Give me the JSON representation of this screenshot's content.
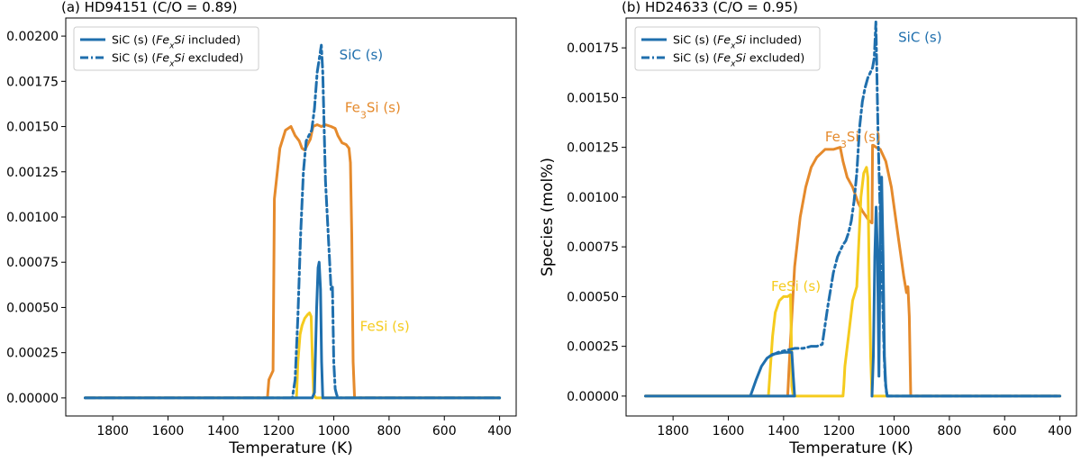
{
  "chart_data": [
    {
      "type": "line",
      "title": "(a) HD94151 (C/O = 0.89)",
      "xlabel": "Temperature (K)",
      "ylabel": "",
      "xlim": [
        1970,
        340
      ],
      "ylim": [
        -0.0001,
        0.0021
      ],
      "xticks": [
        1800,
        1600,
        1400,
        1200,
        1000,
        800,
        600,
        400
      ],
      "xtick_labels": [
        "1800",
        "1600",
        "1400",
        "1200",
        "1000",
        "800",
        "600",
        "400"
      ],
      "yticks": [
        0,
        0.00025,
        0.0005,
        0.00075,
        0.001,
        0.00125,
        0.0015,
        0.00175,
        0.002
      ],
      "ytick_labels": [
        "0.00000",
        "0.00025",
        "0.00050",
        "0.00075",
        "0.00100",
        "0.00125",
        "0.00150",
        "0.00175",
        "0.00200"
      ],
      "grid": false,
      "legend_position": "top-left",
      "legend": [
        {
          "text_before": "SiC (s) (",
          "italic": "FexSi",
          "text_after": " included)",
          "series": "SiC (s) FexSi included",
          "dash": "solid"
        },
        {
          "text_before": "SiC (s) (",
          "italic": "FexSi",
          "text_after": " excluded)",
          "series": "SiC (s) FexSi excluded",
          "dash": "dashdot"
        }
      ],
      "annotations": [
        {
          "label": "SiC (s)",
          "x": 980,
          "y": 0.00187,
          "color": "#1f6fad"
        },
        {
          "label": "Fe3Si (s)",
          "x": 960,
          "y": 0.00158,
          "color": "#e58a2c"
        },
        {
          "label": "FeSi (s)",
          "x": 905,
          "y": 0.00037,
          "color": "#f5cb1e"
        }
      ],
      "series": [
        {
          "name": "Fe3Si (s)",
          "color": "#e58a2c",
          "dash": "solid",
          "x": [
            1900,
            1240,
            1235,
            1220,
            1215,
            1195,
            1175,
            1155,
            1140,
            1125,
            1115,
            1105,
            1095,
            1085,
            1075,
            1060,
            1045,
            1030,
            1010,
            995,
            985,
            970,
            955,
            945,
            940,
            935,
            930,
            925,
            400
          ],
          "y": [
            0,
            0,
            0.0001,
            0.00015,
            0.0011,
            0.00138,
            0.00148,
            0.0015,
            0.00145,
            0.00142,
            0.00138,
            0.00137,
            0.0014,
            0.00143,
            0.0015,
            0.00151,
            0.0015,
            0.00151,
            0.0015,
            0.00149,
            0.00145,
            0.00141,
            0.0014,
            0.00138,
            0.0013,
            0.0009,
            0.0002,
            0,
            0
          ]
        },
        {
          "name": "FeSi (s)",
          "color": "#f5cb1e",
          "dash": "solid",
          "x": [
            1900,
            1135,
            1130,
            1122,
            1115,
            1105,
            1095,
            1088,
            1082,
            1077,
            1073,
            1065,
            400
          ],
          "y": [
            0,
            0,
            0.0002,
            0.00035,
            0.0004,
            0.00044,
            0.00046,
            0.00047,
            0.00045,
            0.0002,
            2e-05,
            0,
            0
          ]
        },
        {
          "name": "SiC (s) FexSi included",
          "color": "#1f6fad",
          "dash": "solid",
          "x": [
            1900,
            1078,
            1070,
            1062,
            1057,
            1053,
            1048,
            1044,
            1040,
            1030,
            400
          ],
          "y": [
            0,
            0,
            3e-05,
            0.0005,
            0.00072,
            0.00075,
            0.0006,
            0.0002,
            0,
            0,
            0
          ]
        },
        {
          "name": "SiC (s) FexSi excluded",
          "color": "#1f6fad",
          "dash": "dashdot",
          "x": [
            1900,
            1150,
            1140,
            1130,
            1120,
            1110,
            1100,
            1090,
            1080,
            1070,
            1060,
            1050,
            1045,
            1040,
            1035,
            1030,
            1020,
            1010,
            1005,
            1000,
            995,
            990,
            985,
            400
          ],
          "y": [
            0,
            0,
            0.0001,
            0.00045,
            0.0009,
            0.00125,
            0.00142,
            0.00145,
            0.00148,
            0.0016,
            0.0018,
            0.0019,
            0.00195,
            0.0018,
            0.0015,
            0.0012,
            0.0009,
            0.0006,
            0.00062,
            0.0002,
            5e-05,
            2e-05,
            0,
            0
          ]
        }
      ]
    },
    {
      "type": "line",
      "title": "(b) HD24633 (C/O = 0.95)",
      "xlabel": "Temperature (K)",
      "ylabel": "Species (mol%)",
      "xlim": [
        1970,
        340
      ],
      "ylim": [
        -0.0001,
        0.0019
      ],
      "xticks": [
        1800,
        1600,
        1400,
        1200,
        1000,
        800,
        600,
        400
      ],
      "xtick_labels": [
        "1800",
        "1600",
        "1400",
        "1200",
        "1000",
        "800",
        "600",
        "400"
      ],
      "yticks": [
        0,
        0.00025,
        0.0005,
        0.00075,
        0.001,
        0.00125,
        0.0015,
        0.00175
      ],
      "ytick_labels": [
        "0.00000",
        "0.00025",
        "0.00050",
        "0.00075",
        "0.00100",
        "0.00125",
        "0.00150",
        "0.00175"
      ],
      "grid": false,
      "legend_position": "top-left",
      "legend": [
        {
          "text_before": "SiC (s) (",
          "italic": "FexSi",
          "text_after": " included)",
          "series": "SiC (s) FexSi included",
          "dash": "solid"
        },
        {
          "text_before": "SiC (s) (",
          "italic": "FexSi",
          "text_after": " excluded)",
          "series": "SiC (s) FexSi excluded",
          "dash": "dashdot"
        }
      ],
      "annotations": [
        {
          "label": "SiC (s)",
          "x": 985,
          "y": 0.00178,
          "color": "#1f6fad"
        },
        {
          "label": "Fe3Si (s)",
          "x": 1250,
          "y": 0.00128,
          "color": "#e58a2c"
        },
        {
          "label": "FeSi (s)",
          "x": 1445,
          "y": 0.00053,
          "color": "#f5cb1e"
        }
      ],
      "series": [
        {
          "name": "Fe3Si (s)",
          "color": "#e58a2c",
          "dash": "solid",
          "x": [
            1900,
            1385,
            1380,
            1370,
            1360,
            1340,
            1320,
            1300,
            1280,
            1250,
            1220,
            1195,
            1185,
            1170,
            1150,
            1130,
            1115,
            1100,
            1090,
            1080,
            1078,
            1075,
            1065,
            1050,
            1030,
            1010,
            985,
            965,
            955,
            950,
            945,
            940,
            400
          ],
          "y": [
            0,
            0,
            0.00015,
            0.0004,
            0.00065,
            0.0009,
            0.00105,
            0.00115,
            0.0012,
            0.00124,
            0.00124,
            0.00125,
            0.00118,
            0.0011,
            0.00105,
            0.00097,
            0.00093,
            0.0009,
            0.00088,
            0.00087,
            0.00126,
            0.00126,
            0.00125,
            0.00124,
            0.00118,
            0.00105,
            0.0008,
            0.0006,
            0.00052,
            0.00055,
            0.0004,
            0,
            0
          ]
        },
        {
          "name": "FeSi (s)",
          "color": "#f5cb1e",
          "dash": "solid",
          "x": [
            1900,
            1455,
            1450,
            1440,
            1430,
            1415,
            1400,
            1385,
            1375,
            1372,
            1370,
            1365,
            1185,
            1182,
            1178,
            1165,
            1150,
            1135,
            1120,
            1110,
            1100,
            1095,
            1090,
            1085,
            1080,
            400
          ],
          "y": [
            0,
            0,
            0.0001,
            0.0003,
            0.00042,
            0.00048,
            0.0005,
            0.0005,
            0.00051,
            0.0003,
            5e-05,
            0,
            0,
            5e-05,
            0.00015,
            0.0003,
            0.00048,
            0.00055,
            0.001,
            0.00112,
            0.00115,
            0.0011,
            0.0006,
            0.0002,
            0,
            0
          ]
        },
        {
          "name": "SiC (s) FexSi included",
          "color": "#1f6fad",
          "dash": "solid",
          "x": [
            1900,
            1520,
            1500,
            1480,
            1460,
            1450,
            1440,
            1400,
            1370,
            1365,
            1360,
            1370,
            1400,
            1445,
            1450,
            1455,
            1600,
            1900
          ],
          "y": [
            0,
            0,
            8e-05,
            0.00015,
            0.00019,
            0.0002,
            0.00021,
            0.00022,
            0.00022,
            0.0001,
            0,
            0,
            0,
            0,
            0,
            0,
            0,
            0
          ],
          "overlay": {
            "x": [
              1080,
              1075,
              1070,
              1065,
              1060,
              1055,
              1050,
              1045,
              1040,
              1035,
              1030,
              1025,
              400
            ],
            "y": [
              0,
              0.0002,
              0.0007,
              0.00095,
              0.0007,
              0.0001,
              0.0009,
              0.0011,
              0.0007,
              0.0002,
              5e-05,
              0,
              0
            ]
          }
        },
        {
          "name": "SiC (s) FexSi excluded",
          "color": "#1f6fad",
          "dash": "dashdot",
          "x": [
            1450,
            1420,
            1390,
            1360,
            1330,
            1300,
            1280,
            1260,
            1240,
            1220,
            1205,
            1195,
            1185,
            1175,
            1165,
            1155,
            1145,
            1135,
            1125,
            1115,
            1105,
            1095,
            1085,
            1078,
            1072,
            1066,
            1062,
            1058,
            1052,
            1046,
            1040,
            1036,
            1032,
            1028,
            1025,
            400
          ],
          "y": [
            0.0002,
            0.00022,
            0.00023,
            0.00024,
            0.00024,
            0.00025,
            0.00025,
            0.00026,
            0.00045,
            0.00062,
            0.0007,
            0.00073,
            0.00076,
            0.00078,
            0.00082,
            0.00088,
            0.00098,
            0.00112,
            0.00135,
            0.00148,
            0.00155,
            0.0016,
            0.00163,
            0.00165,
            0.0017,
            0.00188,
            0.0016,
            0.0013,
            0.001,
            0.0007,
            0.0004,
            0.0002,
            8e-05,
            2e-05,
            0,
            0
          ]
        }
      ]
    }
  ]
}
